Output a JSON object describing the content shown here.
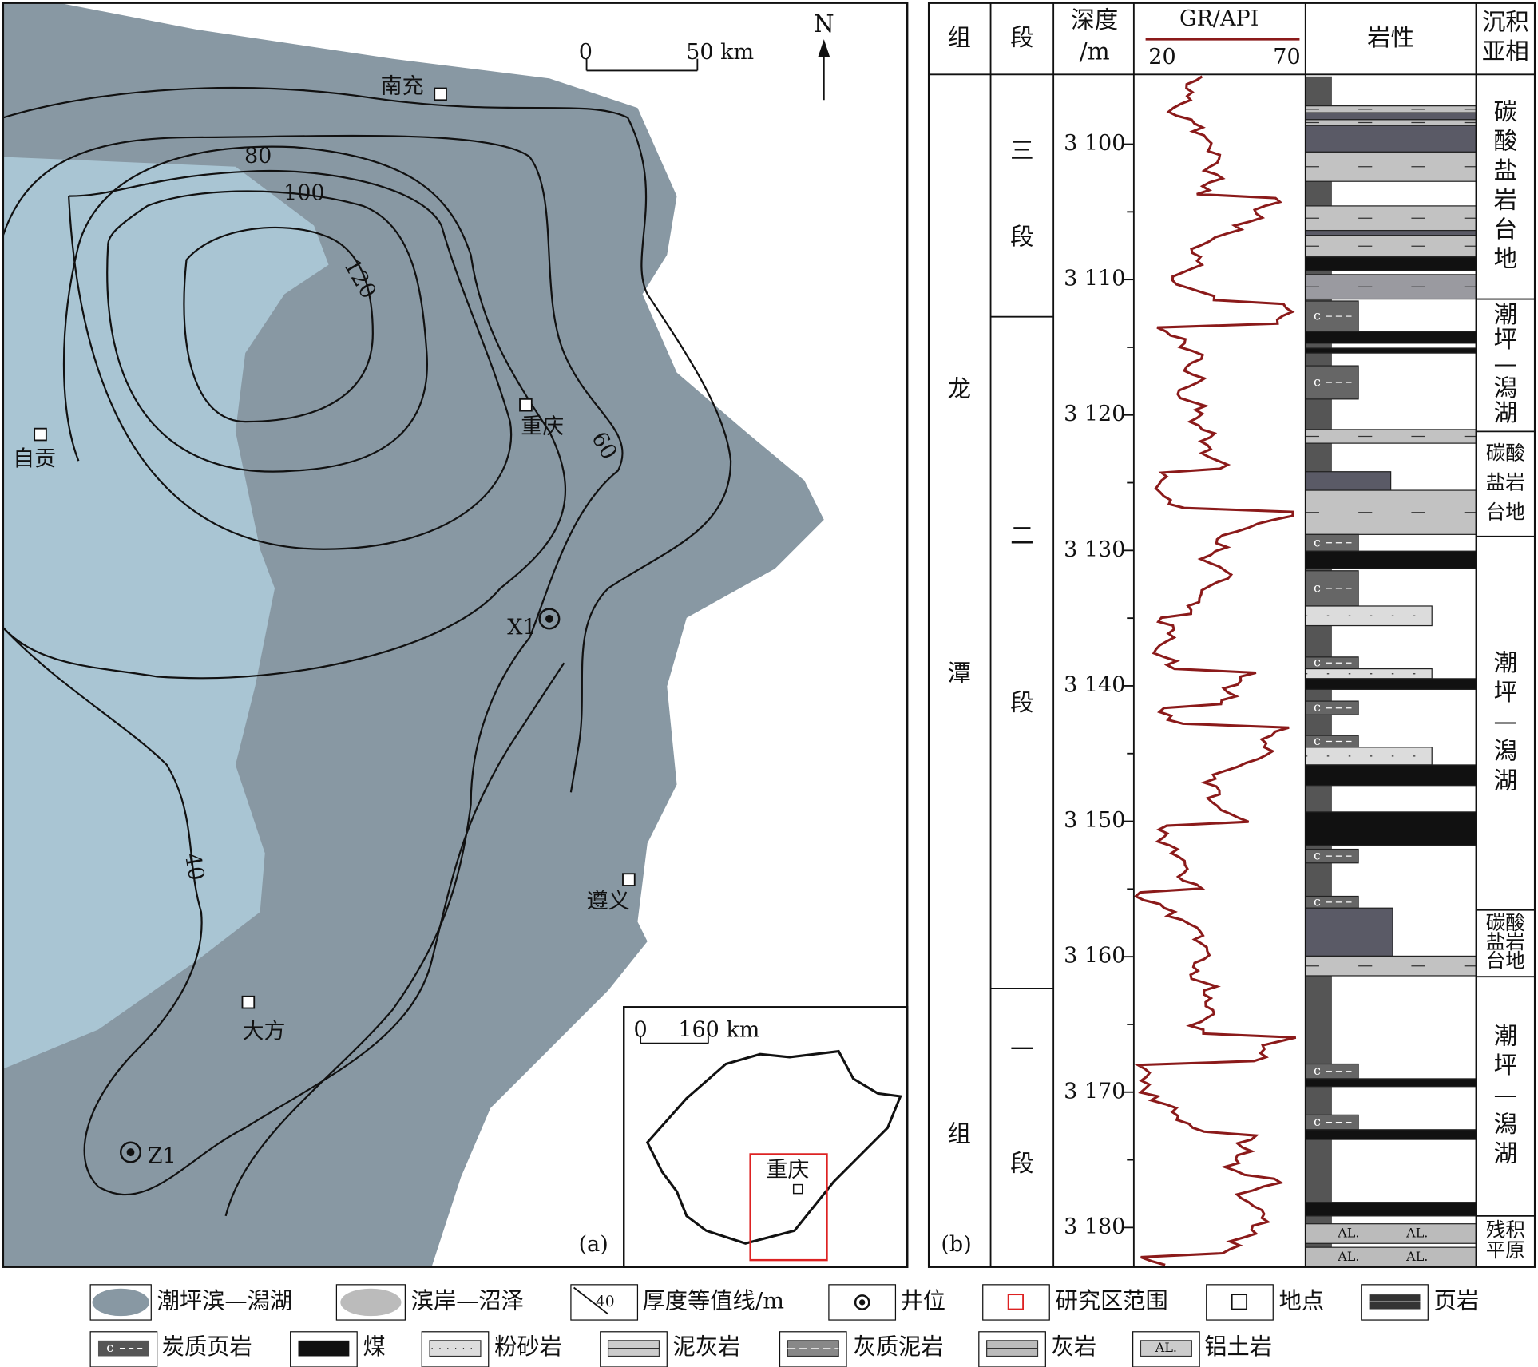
{
  "map": {
    "panel_label": "(a)",
    "north": "N",
    "scale": {
      "start": "0",
      "end": "50 km"
    },
    "places": [
      "南充",
      "重庆",
      "自贡",
      "遵义",
      "大方"
    ],
    "wells": [
      "X1",
      "Z1"
    ],
    "contours": [
      "80",
      "100",
      "120",
      "60",
      "40"
    ],
    "inset": {
      "scale": {
        "start": "0",
        "end": "160 km"
      },
      "place": "重庆"
    }
  },
  "log": {
    "panel_label": "(b)",
    "headers": {
      "formation": "组",
      "member": "段",
      "depth": [
        "深度",
        "/m"
      ],
      "gr": "GR/API",
      "gr_min": "20",
      "gr_max": "70",
      "lithology": "岩性",
      "facies": [
        "沉积",
        "亚相"
      ]
    },
    "formation": [
      "龙",
      "潭",
      "组"
    ],
    "members": [
      [
        "三",
        "段"
      ],
      [
        "二",
        "段"
      ],
      [
        "一",
        "段"
      ]
    ],
    "depths": [
      "3 100",
      "3 110",
      "3 120",
      "3 130",
      "3 140",
      "3 150",
      "3 160",
      "3 170",
      "3 180"
    ],
    "facies": [
      [
        "碳",
        "酸",
        "盐",
        "岩",
        "台",
        "地"
      ],
      [
        "潮",
        "坪",
        "—",
        "潟",
        "湖"
      ],
      [
        "碳酸",
        "盐岩",
        "台地"
      ],
      [
        "潮",
        "坪",
        "—",
        "潟",
        "湖"
      ],
      [
        "碳酸",
        "盐岩",
        "台地"
      ],
      [
        "潮",
        "坪",
        "—",
        "潟",
        "湖"
      ],
      [
        "残积",
        "平原"
      ]
    ],
    "patterns": {
      "carbonaceous": "c",
      "bauxite": "AL."
    }
  },
  "legend": {
    "contour_sample": "40",
    "items": [
      "潮坪滨—潟湖",
      "滨岸—沼泽",
      "厚度等值线/m",
      "井位",
      "研究区范围",
      "地点",
      "页岩",
      "炭质页岩",
      "煤",
      "粉砂岩",
      "泥灰岩",
      "灰质泥岩",
      "灰岩",
      "铝土岩"
    ]
  }
}
